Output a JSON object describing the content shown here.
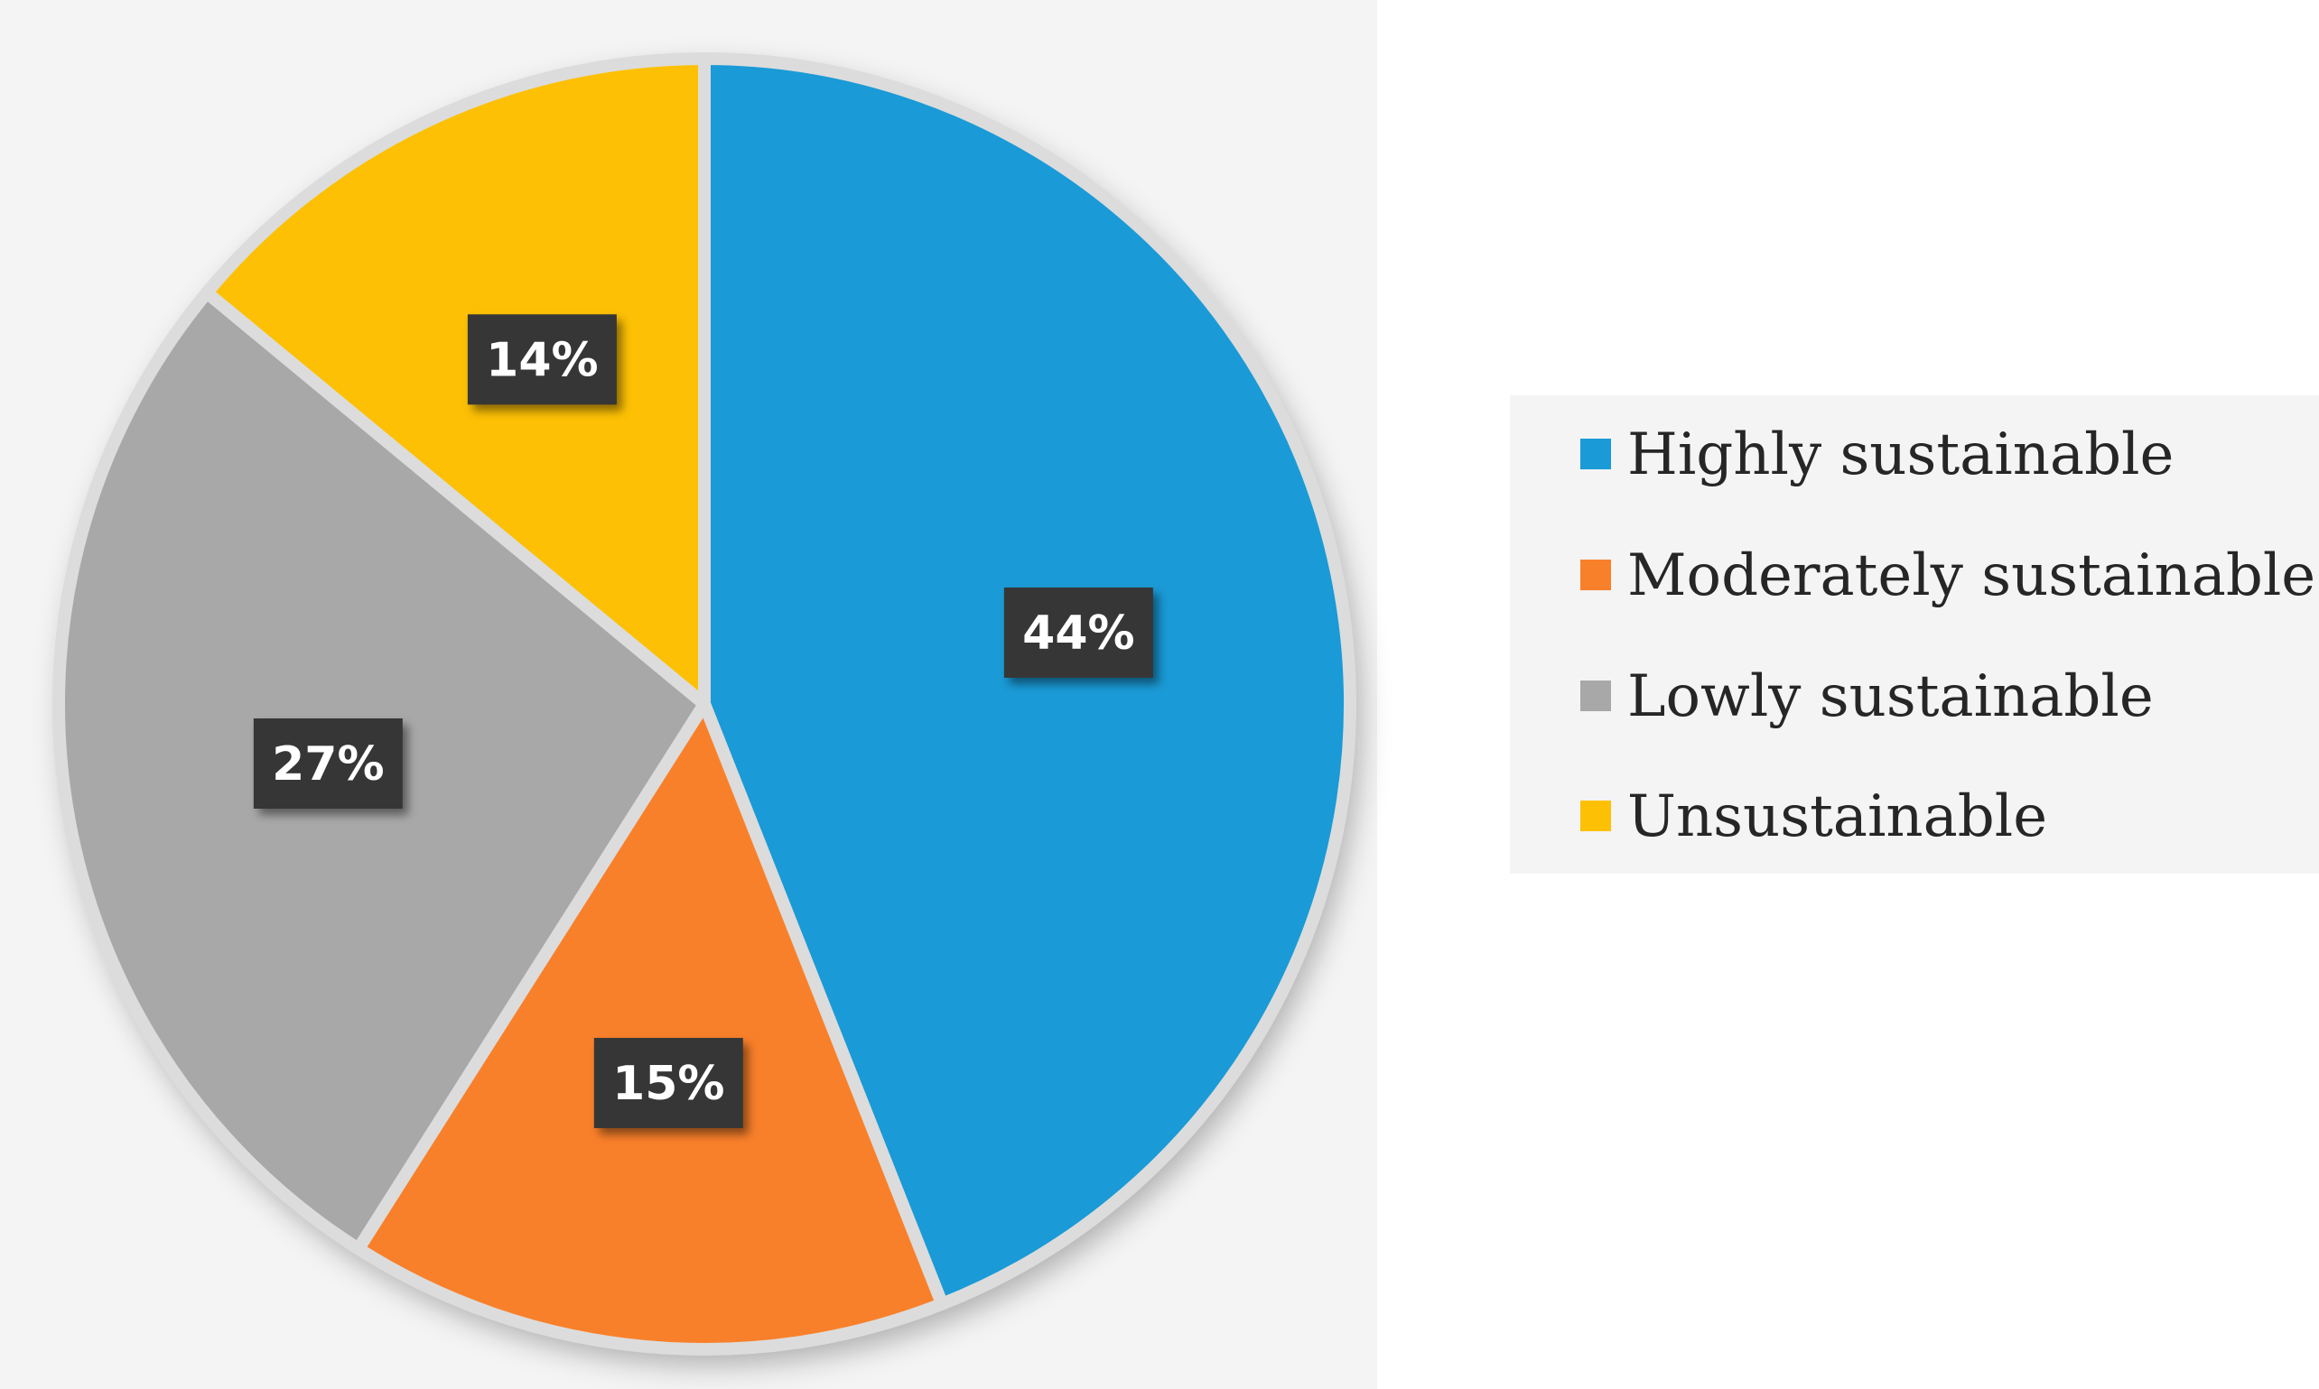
{
  "chart_data": {
    "type": "pie",
    "title": "",
    "labels": [
      "Highly sustainable",
      "Moderately sustainable",
      "Lowly sustainable",
      "Unsustainable"
    ],
    "values": [
      44,
      15,
      27,
      14
    ],
    "data_labels": [
      "44%",
      "15%",
      "27%",
      "14%"
    ],
    "colors": [
      "#1a9ad6",
      "#f9802a",
      "#a8a8a8",
      "#fdc004"
    ],
    "start_angle": "12 o'clock, clockwise",
    "legend": {
      "position": "right",
      "entries": [
        "Highly sustainable",
        "Moderately sustainable",
        "Lowly sustainable",
        "Unsustainable"
      ]
    }
  }
}
